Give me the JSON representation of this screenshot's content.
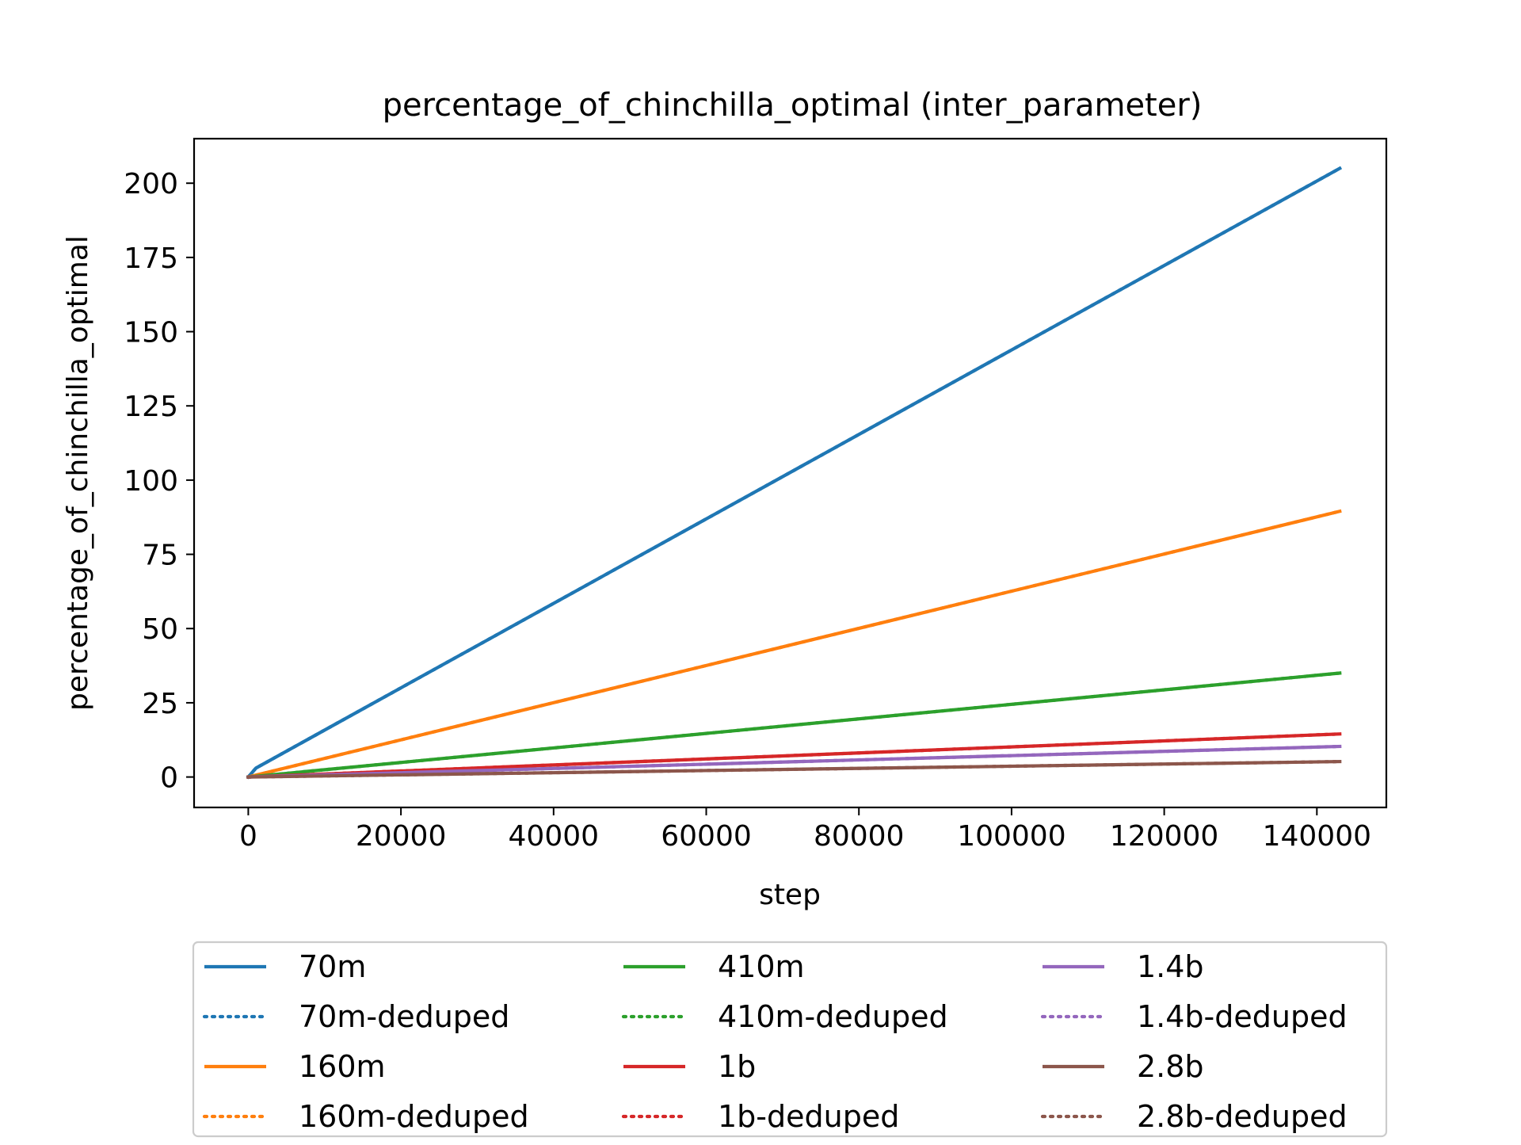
{
  "chart_data": {
    "type": "line",
    "title": "percentage_of_chinchilla_optimal (inter_parameter)",
    "xlabel": "step",
    "ylabel": "percentage_of_chinchilla_optimal",
    "xlim": [
      -7100,
      149100
    ],
    "ylim": [
      -10.25,
      215.0
    ],
    "xticks": [
      0,
      20000,
      40000,
      60000,
      80000,
      100000,
      120000,
      140000
    ],
    "yticks": [
      0,
      25,
      50,
      75,
      100,
      125,
      150,
      175,
      200
    ],
    "grid": false,
    "legend_position": "bottom, outside plot",
    "legend_columns": 3,
    "series": [
      {
        "name": "70m",
        "color": "#1f77b4",
        "style": "solid",
        "x": [
          0,
          1000,
          143000
        ],
        "y": [
          0,
          3.0,
          205.0
        ]
      },
      {
        "name": "70m-deduped",
        "color": "#1f77b4",
        "style": "dotted",
        "x": [
          0,
          1000,
          143000
        ],
        "y": [
          0,
          3.0,
          205.0
        ]
      },
      {
        "name": "160m",
        "color": "#ff7f0e",
        "style": "solid",
        "x": [
          0,
          143000
        ],
        "y": [
          0,
          89.5
        ]
      },
      {
        "name": "160m-deduped",
        "color": "#ff7f0e",
        "style": "dotted",
        "x": [
          0,
          143000
        ],
        "y": [
          0,
          89.5
        ]
      },
      {
        "name": "410m",
        "color": "#2ca02c",
        "style": "solid",
        "x": [
          0,
          143000
        ],
        "y": [
          0,
          35.0
        ]
      },
      {
        "name": "410m-deduped",
        "color": "#2ca02c",
        "style": "dotted",
        "x": [
          0,
          143000
        ],
        "y": [
          0,
          35.0
        ]
      },
      {
        "name": "1b",
        "color": "#d62728",
        "style": "solid",
        "x": [
          0,
          143000
        ],
        "y": [
          0,
          14.5
        ]
      },
      {
        "name": "1b-deduped",
        "color": "#d62728",
        "style": "dotted",
        "x": [
          0,
          143000
        ],
        "y": [
          0,
          14.5
        ]
      },
      {
        "name": "1.4b",
        "color": "#9467bd",
        "style": "solid",
        "x": [
          0,
          143000
        ],
        "y": [
          0,
          10.3
        ]
      },
      {
        "name": "1.4b-deduped",
        "color": "#9467bd",
        "style": "dotted",
        "x": [
          0,
          143000
        ],
        "y": [
          0,
          10.3
        ]
      },
      {
        "name": "2.8b",
        "color": "#8c564b",
        "style": "solid",
        "x": [
          0,
          143000
        ],
        "y": [
          0,
          5.2
        ]
      },
      {
        "name": "2.8b-deduped",
        "color": "#8c564b",
        "style": "dotted",
        "x": [
          0,
          143000
        ],
        "y": [
          0,
          5.2
        ]
      }
    ]
  }
}
